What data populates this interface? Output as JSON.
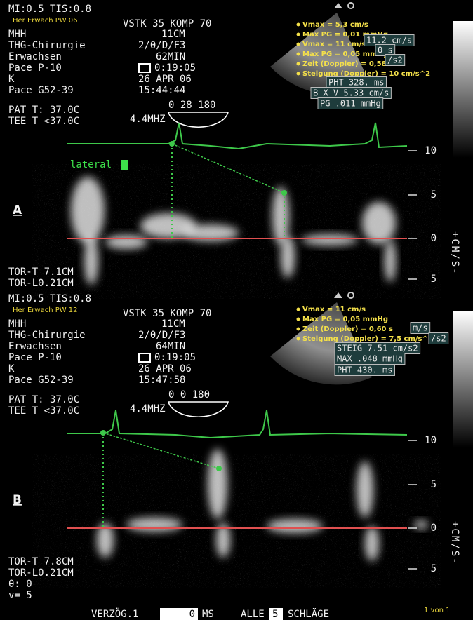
{
  "panels": [
    {
      "label": "A",
      "status": "MI:0.5 TIS:0.8",
      "preset": "Her Erwach PW 06",
      "settings": "VSTK 35 KOMP 70",
      "info_left": [
        "MHH",
        "THG-Chirurgie",
        "Erwachsen",
        "Pace P-10",
        "K",
        "Pace G52-39"
      ],
      "info_right": [
        "11CM",
        "2/0/D/F3",
        "62MIN",
        "0:19:05",
        "26 APR  06",
        "15:44:44"
      ],
      "temps": [
        "PAT T: 37.0C",
        "TEE T <37.0C"
      ],
      "probe": "4.4MHZ",
      "angle": "0  28 180",
      "measurements": [
        "Vmax = 5,3 cm/s",
        "Max PG = 0,01 mmHg",
        "Vmax = 11 cm/s",
        "Max PG = 0,05 mmHg",
        "Zeit (Doppler) = 0,58 s",
        "Steigung (Doppler) = 10 cm/s^2"
      ],
      "readouts": [
        "11.2 cm/s",
        "0 s",
        "/s2",
        "PHT 328. ms",
        "B X V 5.33 cm/s",
        "PG .011 mmHg"
      ],
      "annotation": "lateral",
      "scale": {
        "ticks": [
          "10",
          "5",
          "0",
          "5"
        ],
        "unit": "+CM/S-"
      },
      "depth": [
        "TOR-T  7.1CM",
        "TOR-L0.21CM"
      ]
    },
    {
      "label": "B",
      "status": "MI:0.5 TIS:0.8",
      "preset": "Her Erwach PW 12",
      "settings": "VSTK 35 KOMP 70",
      "info_left": [
        "MHH",
        "THG-Chirurgie",
        "Erwachsen",
        "Pace P-10",
        "K",
        "Pace G52-39"
      ],
      "info_right": [
        "11CM",
        "2/0/D/F3",
        "64MIN",
        "0:19:05",
        "26 APR  06",
        "15:47:58"
      ],
      "temps": [
        "PAT T: 37.0C",
        "TEE T <37.0C"
      ],
      "probe": "4.4MHZ",
      "angle": "0   0 180",
      "measurements": [
        "Vmax = 11 cm/s",
        "Max PG = 0,05 mmHg",
        "Zeit (Doppler) = 0,60 s",
        "Steigung (Doppler) = 7,5 cm/s^2"
      ],
      "readouts": [
        "m/s",
        "/s2",
        "STEIG 7.51 cm/s2",
        "MAX .048 mmHg",
        "PHT 430. ms"
      ],
      "scale": {
        "ticks": [
          "10",
          "5",
          "0",
          "5"
        ],
        "unit": "+CM/S-"
      },
      "depth": [
        "TOR-T  7.8CM",
        "TOR-L0.21CM",
        "θ: 0",
        "v= 5"
      ]
    }
  ],
  "footer": {
    "delay_label": "VERZÖG.1",
    "delay_value": "0",
    "delay_unit": "MS",
    "beats_label": "ALLE",
    "beats_value": "5",
    "beats_unit": "SCHLÄGE",
    "page": "1 von 1"
  }
}
